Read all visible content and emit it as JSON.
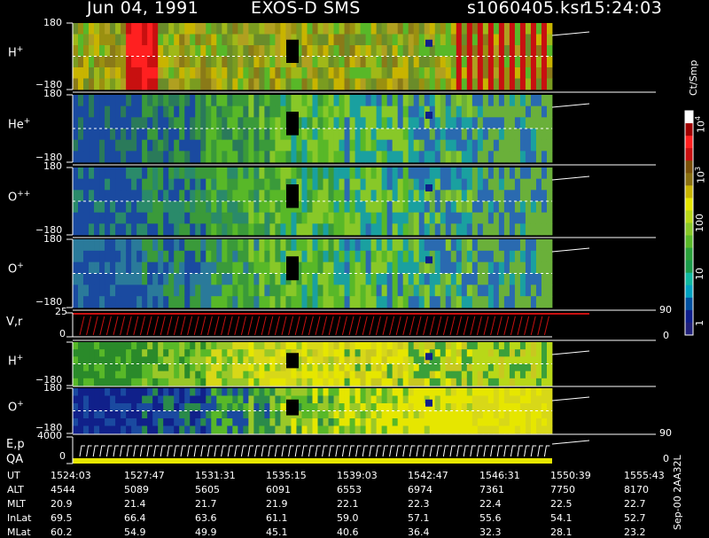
{
  "header": {
    "date": "Jun 04, 1991",
    "instrument": "EXOS-D SMS",
    "file": "s1060405.ksr",
    "time": "15:24:03"
  },
  "panels": [
    {
      "label": "H",
      "charge": "+",
      "ymax": "180",
      "ymin": "−180"
    },
    {
      "label": "He",
      "charge": "+",
      "ymax": "180",
      "ymin": "−180"
    },
    {
      "label": "O",
      "charge": "++",
      "ymax": "180",
      "ymin": "−180"
    },
    {
      "label": "O",
      "charge": "+",
      "ymax": "180",
      "ymin": "−180"
    },
    {
      "label": "V,r",
      "charge": "",
      "ymax": "25",
      "ymin": "0",
      "rmax": "90",
      "rmin": "0"
    },
    {
      "label": "H",
      "charge": "+",
      "ymax": "180",
      "ymin": "−180"
    },
    {
      "label": "O",
      "charge": "+",
      "ymax": "180",
      "ymin": "−180"
    },
    {
      "label": "E,p",
      "label2": "QA",
      "ymax": "4000",
      "ymin": "0",
      "rmax": "90",
      "rmin": "0"
    }
  ],
  "colorbar": {
    "unit": "Ct/Smp",
    "ticks": [
      {
        "label": "10",
        "sup": "4"
      },
      {
        "label": "10",
        "sup": "3"
      },
      {
        "label": "100",
        "sup": ""
      },
      {
        "label": "10",
        "sup": ""
      },
      {
        "label": "1",
        "sup": ""
      }
    ],
    "colors": [
      "#20207a",
      "#0e1e8c",
      "#0050a0",
      "#00a0c0",
      "#10b8a0",
      "#1a9a4a",
      "#2aa03a",
      "#58b828",
      "#88c828",
      "#b8d818",
      "#e6e600",
      "#c8b400",
      "#8a7010",
      "#7a5008",
      "#c81010",
      "#ff2020",
      "#a00000",
      "#ffffff"
    ]
  },
  "footer": {
    "side_label": "Sep-00 2AA32L",
    "rows": [
      {
        "name": "UT",
        "values": [
          "1524:03",
          "1527:47",
          "1531:31",
          "1535:15",
          "1539:03",
          "1542:47",
          "1546:31",
          "1550:39",
          "1555:43"
        ]
      },
      {
        "name": "ALT",
        "values": [
          "4544",
          "5089",
          "5605",
          "6091",
          "6553",
          "6974",
          "7361",
          "7750",
          "8170"
        ]
      },
      {
        "name": "MLT",
        "values": [
          "20.9",
          "21.4",
          "21.7",
          "21.9",
          "22.1",
          "22.3",
          "22.4",
          "22.5",
          "22.7"
        ]
      },
      {
        "name": "InLat",
        "values": [
          "69.5",
          "66.4",
          "63.6",
          "61.1",
          "59.0",
          "57.1",
          "55.6",
          "54.1",
          "52.7"
        ]
      },
      {
        "name": "MLat",
        "values": [
          "60.2",
          "54.9",
          "49.9",
          "45.1",
          "40.6",
          "36.4",
          "32.3",
          "28.1",
          "23.2"
        ]
      }
    ]
  },
  "chart_data": {
    "type": "heatmap",
    "title": "Jun 04, 1991   EXOS-D SMS",
    "x": [
      "1524:03",
      "1527:47",
      "1531:31",
      "1535:15",
      "1539:03",
      "1542:47",
      "1546:31",
      "1550:39",
      "1555:43"
    ],
    "series": [
      {
        "name": "H+",
        "ylim": [
          -180,
          180
        ]
      },
      {
        "name": "He+",
        "ylim": [
          -180,
          180
        ]
      },
      {
        "name": "O++",
        "ylim": [
          -180,
          180
        ]
      },
      {
        "name": "O+",
        "ylim": [
          -180,
          180
        ]
      },
      {
        "name": "V,r",
        "ylim": [
          0,
          25
        ],
        "right_ylim": [
          0,
          90
        ]
      },
      {
        "name": "H+",
        "ylim": [
          -180,
          180
        ]
      },
      {
        "name": "O+",
        "ylim": [
          -180,
          180
        ]
      },
      {
        "name": "E,p",
        "ylim": [
          0,
          4000
        ],
        "right_ylim": [
          0,
          90
        ]
      }
    ],
    "colorbar": {
      "label": "Ct/Smp",
      "ticks": [
        "1",
        "10",
        "100",
        "10^3",
        "10^4"
      ]
    }
  }
}
